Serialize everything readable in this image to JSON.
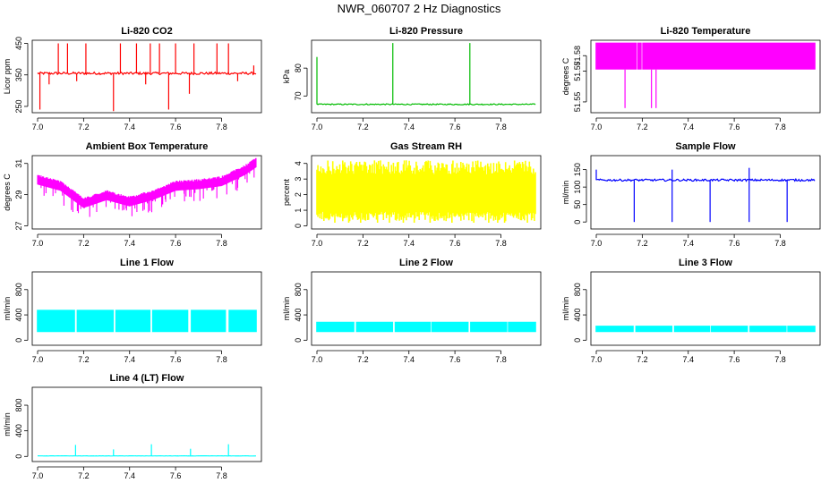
{
  "figure_title": "NWR_060707  2 Hz Diagnostics",
  "chart_data": [
    {
      "type": "line",
      "title": "Li-820 CO2",
      "ylabel": "Licor ppm",
      "xlabel": "",
      "color": "#ff0000",
      "xlim": [
        7.0,
        7.95
      ],
      "ylim": [
        230,
        460
      ],
      "x_ticks": [
        "7.0",
        "7.2",
        "7.4",
        "7.6",
        "7.8"
      ],
      "y_ticks": [
        "250",
        "350",
        "450"
      ],
      "series": [
        {
          "name": "co2",
          "baseline": 355,
          "noise": 4,
          "spikes": [
            [
              7.01,
              240
            ],
            [
              7.05,
              320
            ],
            [
              7.09,
              450
            ],
            [
              7.13,
              450
            ],
            [
              7.17,
              330
            ],
            [
              7.21,
              450
            ],
            [
              7.33,
              235
            ],
            [
              7.36,
              450
            ],
            [
              7.43,
              450
            ],
            [
              7.47,
              320
            ],
            [
              7.49,
              450
            ],
            [
              7.53,
              450
            ],
            [
              7.57,
              240
            ],
            [
              7.6,
              450
            ],
            [
              7.66,
              290
            ],
            [
              7.68,
              450
            ],
            [
              7.78,
              450
            ],
            [
              7.83,
              450
            ],
            [
              7.87,
              330
            ],
            [
              7.94,
              380
            ]
          ]
        }
      ]
    },
    {
      "type": "line",
      "title": "Li-820 Pressure",
      "ylabel": "kPa",
      "xlabel": "",
      "color": "#00bb00",
      "xlim": [
        7.0,
        7.95
      ],
      "ylim": [
        64,
        90
      ],
      "x_ticks": [
        "7.0",
        "7.2",
        "7.4",
        "7.6",
        "7.8"
      ],
      "y_ticks": [
        "70",
        "80"
      ],
      "series": [
        {
          "name": "pressure",
          "baseline": 67,
          "noise": 0.2,
          "spikes": [
            [
              7.0,
              84
            ],
            [
              7.33,
              89
            ],
            [
              7.665,
              89
            ]
          ]
        }
      ]
    },
    {
      "type": "area",
      "title": "Li-820 Temperature",
      "ylabel": "degrees C",
      "xlabel": "",
      "color": "#ff00ff",
      "xlim": [
        7.0,
        7.95
      ],
      "ylim": [
        51.543,
        51.59
      ],
      "x_ticks": [
        "7.0",
        "7.2",
        "7.4",
        "7.6",
        "7.8"
      ],
      "y_ticks": [
        "51.55",
        "51.57",
        "51.58"
      ],
      "series": [
        {
          "name": "temperature",
          "low": 51.571,
          "high": 51.5885,
          "gaps": [
            [
              7.175,
              7.18
            ],
            [
              7.195,
              7.2
            ]
          ],
          "drops": [
            [
              7.125,
              51.546
            ],
            [
              7.24,
              51.546
            ],
            [
              7.26,
              51.546
            ]
          ]
        }
      ]
    },
    {
      "type": "line",
      "title": "Ambient Box Temperature",
      "ylabel": "degrees C",
      "xlabel": "",
      "color": "#ff00ff",
      "xlim": [
        7.0,
        7.95
      ],
      "ylim": [
        26.8,
        31.5
      ],
      "x_ticks": [
        "7.0",
        "7.2",
        "7.4",
        "7.6",
        "7.8"
      ],
      "y_ticks": [
        "27",
        "29",
        "31"
      ],
      "series": [
        {
          "name": "ambient",
          "trend": [
            [
              7.0,
              29.9
            ],
            [
              7.1,
              29.5
            ],
            [
              7.2,
              28.4
            ],
            [
              7.3,
              28.9
            ],
            [
              7.4,
              28.5
            ],
            [
              7.5,
              28.9
            ],
            [
              7.6,
              29.5
            ],
            [
              7.7,
              29.6
            ],
            [
              7.8,
              29.8
            ],
            [
              7.9,
              30.5
            ],
            [
              7.95,
              31.0
            ]
          ],
          "band": 0.5
        }
      ]
    },
    {
      "type": "area",
      "title": "Gas Stream RH",
      "ylabel": "percent",
      "xlabel": "",
      "color": "#ffff00",
      "xlim": [
        7.0,
        7.95
      ],
      "ylim": [
        -0.2,
        4.5
      ],
      "x_ticks": [
        "7.0",
        "7.2",
        "7.4",
        "7.6",
        "7.8"
      ],
      "y_ticks": [
        "0",
        "1",
        "2",
        "3",
        "4"
      ],
      "series": [
        {
          "name": "rh",
          "low": 0.5,
          "high": 3.9
        }
      ]
    },
    {
      "type": "line",
      "title": "Sample Flow",
      "ylabel": "ml/min",
      "xlabel": "",
      "color": "#0000ff",
      "xlim": [
        7.0,
        7.95
      ],
      "ylim": [
        -20,
        190
      ],
      "x_ticks": [
        "7.0",
        "7.2",
        "7.4",
        "7.6",
        "7.8"
      ],
      "y_ticks": [
        "0",
        "50",
        "100",
        "150"
      ],
      "series": [
        {
          "name": "sample",
          "baseline": 120,
          "noise": 3,
          "spikes": [
            [
              7.0,
              150
            ],
            [
              7.165,
              0
            ],
            [
              7.33,
              150
            ],
            [
              7.33,
              0
            ],
            [
              7.495,
              0
            ],
            [
              7.665,
              155
            ],
            [
              7.665,
              0
            ],
            [
              7.83,
              0
            ]
          ]
        }
      ]
    },
    {
      "type": "area",
      "title": "Line 1 Flow",
      "ylabel": "ml/min",
      "xlabel": "",
      "color": "#00ffff",
      "xlim": [
        7.0,
        7.95
      ],
      "ylim": [
        -80,
        1080
      ],
      "x_ticks": [
        "7.0",
        "7.2",
        "7.4",
        "7.6",
        "7.8"
      ],
      "y_ticks": [
        "0",
        "400",
        "800"
      ],
      "series": [
        {
          "name": "line1",
          "low": 130,
          "high": 480,
          "gaps": [
            [
              7.16,
              7.17
            ],
            [
              7.33,
              7.34
            ],
            [
              7.49,
              7.5
            ],
            [
              7.655,
              7.665
            ],
            [
              7.82,
              7.83
            ]
          ]
        }
      ]
    },
    {
      "type": "area",
      "title": "Line 2 Flow",
      "ylabel": "ml/min",
      "xlabel": "",
      "color": "#00ffff",
      "xlim": [
        7.0,
        7.95
      ],
      "ylim": [
        -80,
        1080
      ],
      "x_ticks": [
        "7.0",
        "7.2",
        "7.4",
        "7.6",
        "7.8"
      ],
      "y_ticks": [
        "0",
        "400",
        "800"
      ],
      "series": [
        {
          "name": "line2",
          "low": 130,
          "high": 290,
          "gaps": [
            [
              7.16,
              7.17
            ],
            [
              7.33,
              7.34
            ],
            [
              7.495,
              7.5
            ],
            [
              7.66,
              7.665
            ],
            [
              7.825,
              7.83
            ]
          ]
        }
      ]
    },
    {
      "type": "area",
      "title": "Line 3 Flow",
      "ylabel": "ml/min",
      "xlabel": "",
      "color": "#00ffff",
      "xlim": [
        7.0,
        7.95
      ],
      "ylim": [
        -80,
        1080
      ],
      "x_ticks": [
        "7.0",
        "7.2",
        "7.4",
        "7.6",
        "7.8"
      ],
      "y_ticks": [
        "0",
        "400",
        "800"
      ],
      "series": [
        {
          "name": "line3",
          "low": 130,
          "high": 230,
          "gaps": [
            [
              7.16,
              7.17
            ],
            [
              7.33,
              7.34
            ],
            [
              7.495,
              7.5
            ],
            [
              7.66,
              7.665
            ],
            [
              7.825,
              7.83
            ]
          ]
        }
      ]
    },
    {
      "type": "line",
      "title": "Line 4 (LT) Flow",
      "ylabel": "ml/min",
      "xlabel": "",
      "color": "#00ffff",
      "xlim": [
        7.0,
        7.95
      ],
      "ylim": [
        -80,
        1080
      ],
      "x_ticks": [
        "7.0",
        "7.2",
        "7.4",
        "7.6",
        "7.8"
      ],
      "y_ticks": [
        "0",
        "400",
        "800"
      ],
      "series": [
        {
          "name": "line4",
          "baseline": 8,
          "noise": 2,
          "spikes": [
            [
              7.165,
              180
            ],
            [
              7.33,
              110
            ],
            [
              7.495,
              190
            ],
            [
              7.665,
              120
            ],
            [
              7.83,
              190
            ]
          ]
        }
      ]
    }
  ]
}
